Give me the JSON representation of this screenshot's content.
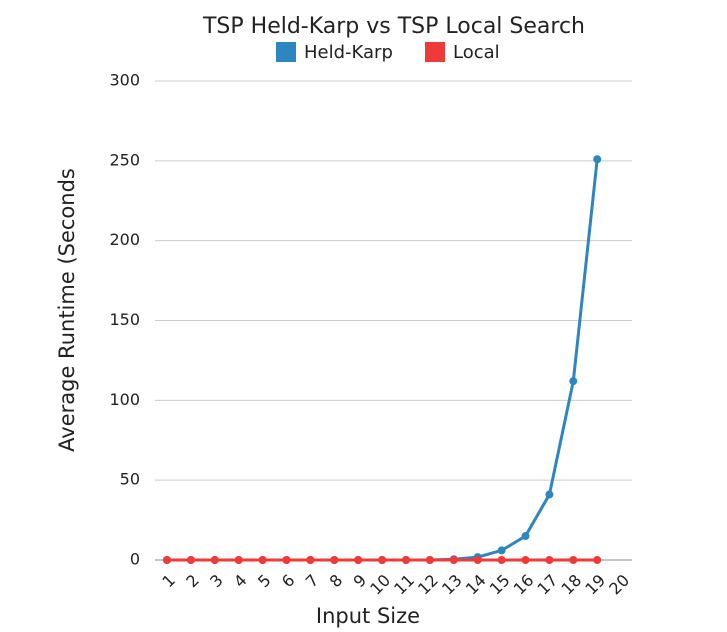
{
  "chart_data": {
    "type": "line",
    "title": "TSP Held-Karp vs TSP Local Search",
    "x_label": "Input Size",
    "y_label": "Average Runtime (Seconds",
    "categories": [
      "1",
      "2",
      "3",
      "4",
      "5",
      "6",
      "7",
      "8",
      "9",
      "10",
      "11",
      "12",
      "13",
      "14",
      "15",
      "16",
      "17",
      "18",
      "19",
      "20"
    ],
    "series": [
      {
        "name": "Held-Karp",
        "color": "#2e86c1",
        "values": [
          0,
          0,
          0,
          0,
          0,
          0,
          0,
          0,
          0,
          0,
          0,
          0,
          0.5,
          1.8,
          6,
          15,
          41,
          112,
          251,
          null
        ]
      },
      {
        "name": "Local",
        "color": "#f03a3a",
        "values": [
          0,
          0,
          0,
          0,
          0,
          0,
          0,
          0,
          0,
          0,
          0,
          0,
          0,
          0,
          0,
          0,
          0,
          0,
          0,
          null
        ]
      }
    ],
    "ylim": [
      0,
      300
    ],
    "yticks": [
      0,
      50,
      100,
      150,
      200,
      250,
      300
    ],
    "grid": true
  }
}
